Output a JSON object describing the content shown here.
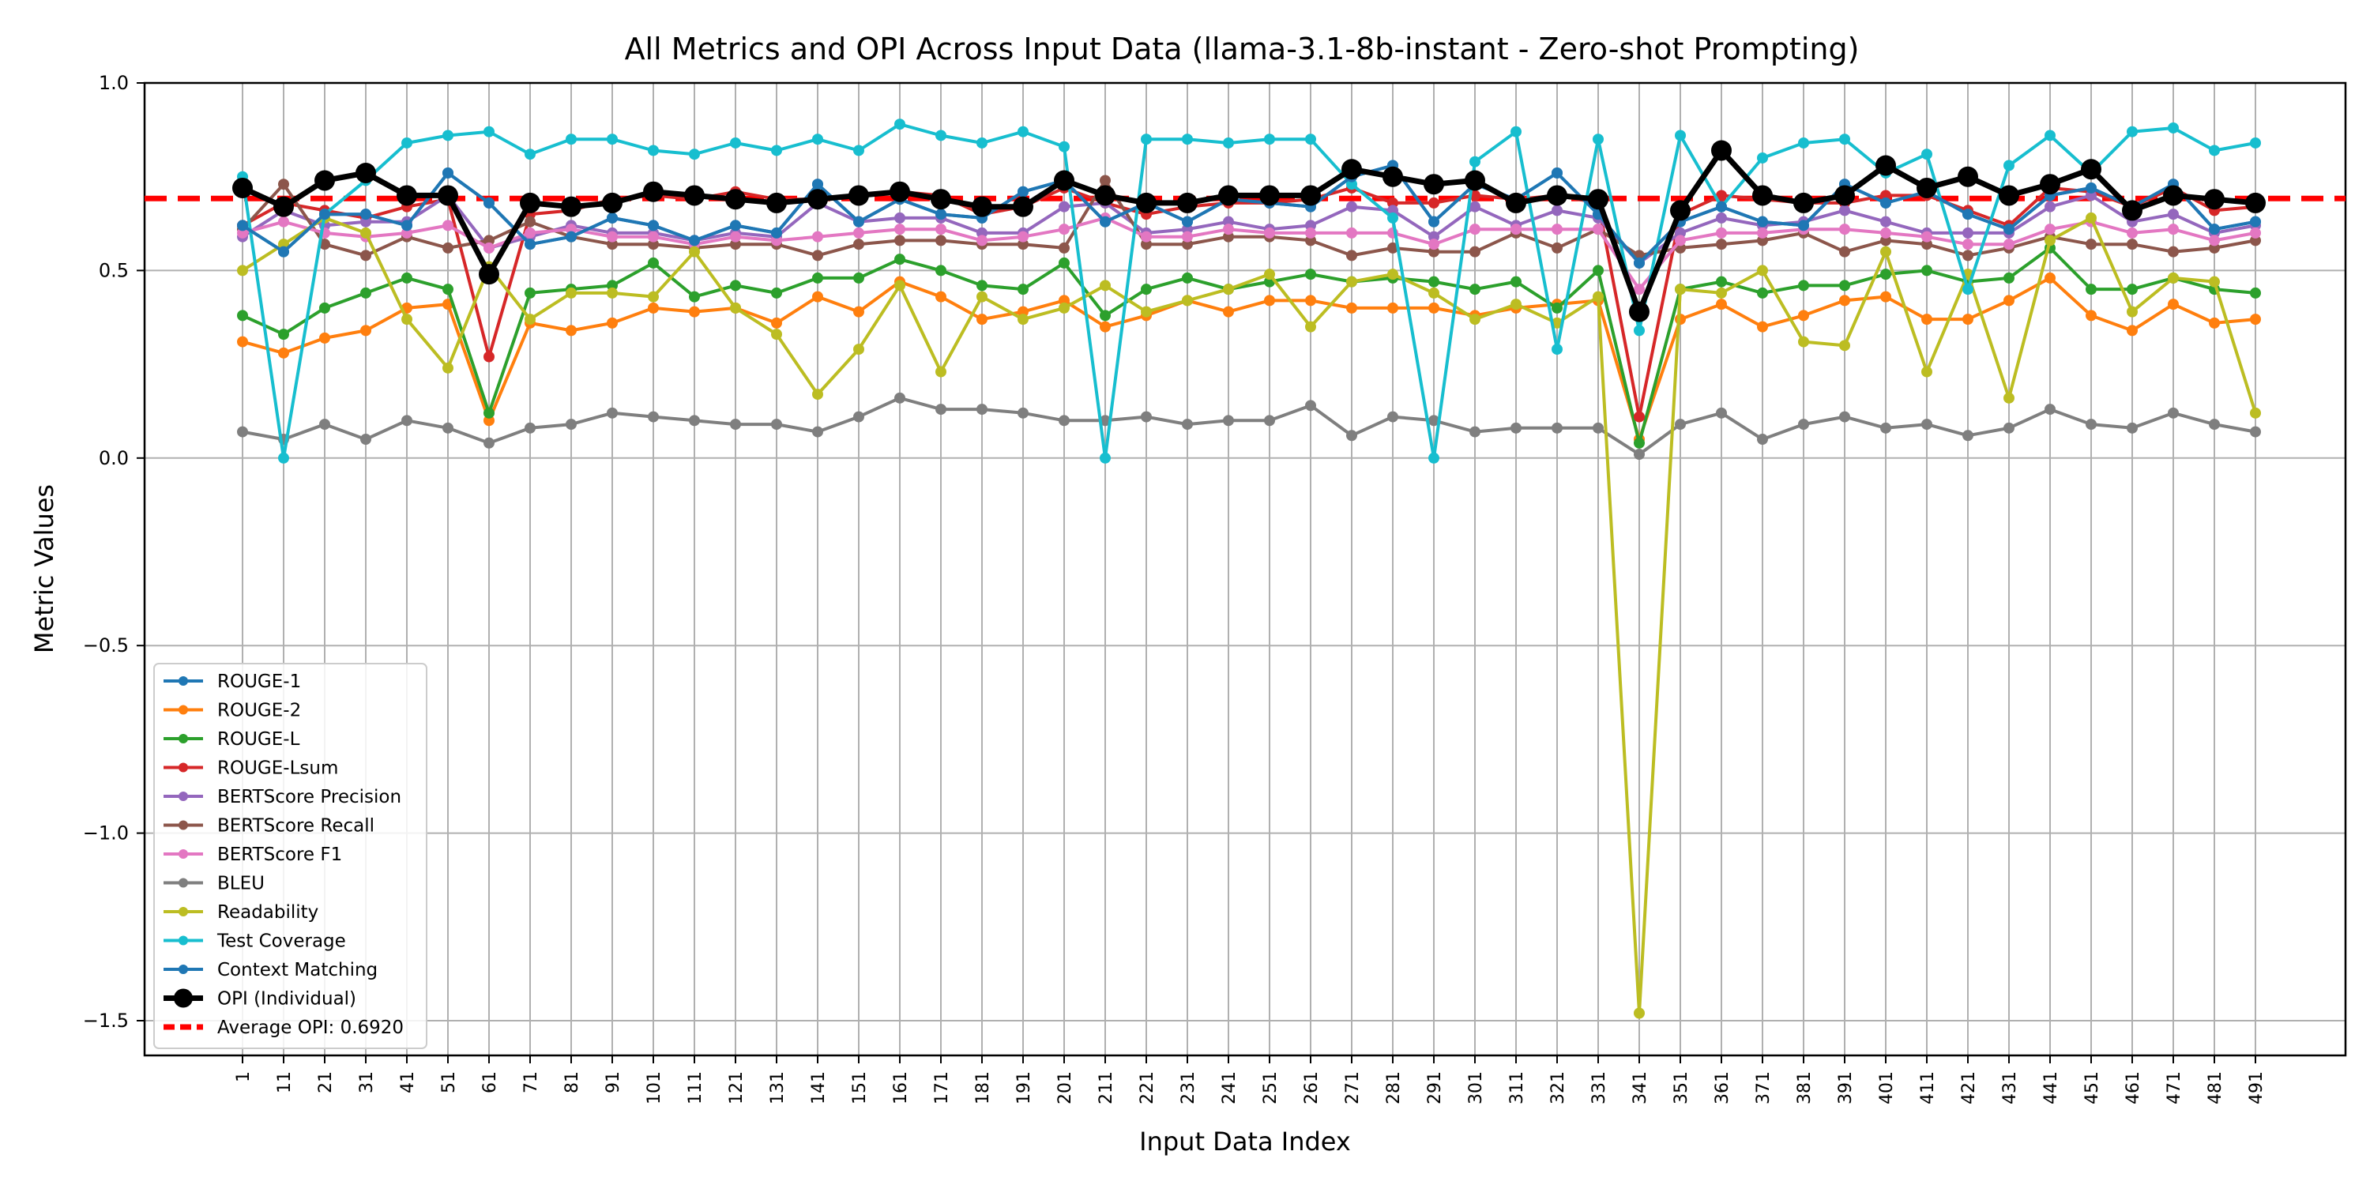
{
  "chart_data": {
    "type": "line",
    "title": "All Metrics and OPI Across Input Data (llama-3.1-8b-instant - Zero-shot Prompting)",
    "xlabel": "Input Data Index",
    "ylabel": "Metric Values",
    "ylim": [
      -1.6,
      1.0
    ],
    "yticks": [
      1.0,
      0.5,
      0.0,
      -0.5,
      -1.0,
      -1.5
    ],
    "ytick_labels": [
      "1.0",
      "0.5",
      "0.0",
      "−0.5",
      "−1.0",
      "−1.5"
    ],
    "grid": true,
    "legend_position": "lower-left",
    "x": [
      "1",
      "11",
      "21",
      "31",
      "41",
      "51",
      "61",
      "71",
      "81",
      "91",
      "101",
      "111",
      "121",
      "131",
      "141",
      "151",
      "161",
      "171",
      "181",
      "191",
      "201",
      "211",
      "221",
      "231",
      "241",
      "251",
      "261",
      "271",
      "281",
      "291",
      "301",
      "311",
      "321",
      "331",
      "341",
      "351",
      "361",
      "371",
      "381",
      "391",
      "401",
      "411",
      "421",
      "431",
      "441",
      "451",
      "461",
      "471",
      "481",
      "491"
    ],
    "series": [
      {
        "name": "ROUGE-1",
        "color": "#1f77b4",
        "values": [
          0.62,
          0.55,
          0.65,
          0.65,
          0.62,
          0.76,
          0.68,
          0.57,
          0.59,
          0.64,
          0.62,
          0.58,
          0.62,
          0.6,
          0.73,
          0.63,
          0.69,
          0.65,
          0.64,
          0.71,
          0.74,
          0.63,
          0.68,
          0.63,
          0.69,
          0.68,
          0.67,
          0.75,
          0.78,
          0.63,
          0.73,
          0.69,
          0.76,
          0.65,
          0.52,
          0.63,
          0.67,
          0.63,
          0.62,
          0.73,
          0.68,
          0.71,
          0.65,
          0.61,
          0.7,
          0.72,
          0.67,
          0.73,
          0.61,
          0.63
        ]
      },
      {
        "name": "ROUGE-2",
        "color": "#ff7f0e",
        "values": [
          0.31,
          0.28,
          0.32,
          0.34,
          0.4,
          0.41,
          0.1,
          0.36,
          0.34,
          0.36,
          0.4,
          0.39,
          0.4,
          0.36,
          0.43,
          0.39,
          0.47,
          0.43,
          0.37,
          0.39,
          0.42,
          0.35,
          0.38,
          0.42,
          0.39,
          0.42,
          0.42,
          0.4,
          0.4,
          0.4,
          0.38,
          0.4,
          0.41,
          0.42,
          0.05,
          0.37,
          0.41,
          0.35,
          0.38,
          0.42,
          0.43,
          0.37,
          0.37,
          0.42,
          0.48,
          0.38,
          0.34,
          0.41,
          0.36,
          0.37
        ]
      },
      {
        "name": "ROUGE-L",
        "color": "#2ca02c",
        "values": [
          0.38,
          0.33,
          0.4,
          0.44,
          0.48,
          0.45,
          0.12,
          0.44,
          0.45,
          0.46,
          0.52,
          0.43,
          0.46,
          0.44,
          0.48,
          0.48,
          0.53,
          0.5,
          0.46,
          0.45,
          0.52,
          0.38,
          0.45,
          0.48,
          0.45,
          0.47,
          0.49,
          0.47,
          0.48,
          0.47,
          0.45,
          0.47,
          0.4,
          0.5,
          0.04,
          0.45,
          0.47,
          0.44,
          0.46,
          0.46,
          0.49,
          0.5,
          0.47,
          0.48,
          0.56,
          0.45,
          0.45,
          0.48,
          0.45,
          0.44
        ]
      },
      {
        "name": "ROUGE-Lsum",
        "color": "#d62728",
        "values": [
          0.62,
          0.68,
          0.66,
          0.64,
          0.67,
          0.69,
          0.27,
          0.65,
          0.66,
          0.69,
          0.7,
          0.69,
          0.71,
          0.69,
          0.69,
          0.7,
          0.71,
          0.7,
          0.65,
          0.67,
          0.72,
          0.68,
          0.65,
          0.67,
          0.68,
          0.68,
          0.69,
          0.72,
          0.68,
          0.68,
          0.7,
          0.69,
          0.7,
          0.68,
          0.11,
          0.65,
          0.7,
          0.69,
          0.68,
          0.68,
          0.7,
          0.7,
          0.66,
          0.62,
          0.72,
          0.71,
          0.67,
          0.72,
          0.66,
          0.67
        ]
      },
      {
        "name": "BERTScore Precision",
        "color": "#9467bd",
        "values": [
          0.59,
          0.66,
          0.62,
          0.63,
          0.63,
          0.7,
          0.56,
          0.59,
          0.62,
          0.6,
          0.6,
          0.58,
          0.6,
          0.59,
          0.68,
          0.63,
          0.64,
          0.64,
          0.6,
          0.6,
          0.67,
          0.68,
          0.6,
          0.61,
          0.63,
          0.61,
          0.62,
          0.67,
          0.66,
          0.59,
          0.67,
          0.62,
          0.66,
          0.64,
          0.52,
          0.6,
          0.64,
          0.62,
          0.63,
          0.66,
          0.63,
          0.6,
          0.6,
          0.6,
          0.67,
          0.7,
          0.63,
          0.65,
          0.6,
          0.62
        ]
      },
      {
        "name": "BERTScore Recall",
        "color": "#8c564b",
        "values": [
          0.61,
          0.73,
          0.57,
          0.54,
          0.59,
          0.56,
          0.58,
          0.63,
          0.59,
          0.57,
          0.57,
          0.56,
          0.57,
          0.57,
          0.54,
          0.57,
          0.58,
          0.58,
          0.57,
          0.57,
          0.56,
          0.74,
          0.57,
          0.57,
          0.59,
          0.59,
          0.58,
          0.54,
          0.56,
          0.55,
          0.55,
          0.6,
          0.56,
          0.61,
          0.54,
          0.56,
          0.57,
          0.58,
          0.6,
          0.55,
          0.58,
          0.57,
          0.54,
          0.56,
          0.59,
          0.57,
          0.57,
          0.55,
          0.56,
          0.58
        ]
      },
      {
        "name": "BERTScore F1",
        "color": "#e377c2",
        "values": [
          0.6,
          0.63,
          0.6,
          0.59,
          0.6,
          0.62,
          0.56,
          0.6,
          0.61,
          0.59,
          0.59,
          0.57,
          0.59,
          0.58,
          0.59,
          0.6,
          0.61,
          0.61,
          0.58,
          0.59,
          0.61,
          0.64,
          0.59,
          0.59,
          0.61,
          0.6,
          0.6,
          0.6,
          0.6,
          0.57,
          0.61,
          0.61,
          0.61,
          0.61,
          0.45,
          0.58,
          0.6,
          0.6,
          0.61,
          0.61,
          0.6,
          0.59,
          0.57,
          0.57,
          0.61,
          0.63,
          0.6,
          0.61,
          0.58,
          0.6
        ]
      },
      {
        "name": "BLEU",
        "color": "#7f7f7f",
        "values": [
          0.07,
          0.05,
          0.09,
          0.05,
          0.1,
          0.08,
          0.04,
          0.08,
          0.09,
          0.12,
          0.11,
          0.1,
          0.09,
          0.09,
          0.07,
          0.11,
          0.16,
          0.13,
          0.13,
          0.12,
          0.1,
          0.1,
          0.11,
          0.09,
          0.1,
          0.1,
          0.14,
          0.06,
          0.11,
          0.1,
          0.07,
          0.08,
          0.08,
          0.08,
          0.01,
          0.09,
          0.12,
          0.05,
          0.09,
          0.11,
          0.08,
          0.09,
          0.06,
          0.08,
          0.13,
          0.09,
          0.08,
          0.12,
          0.09,
          0.07
        ]
      },
      {
        "name": "Readability",
        "color": "#bcbd22",
        "values": [
          0.5,
          0.57,
          0.64,
          0.6,
          0.37,
          0.24,
          0.51,
          0.37,
          0.44,
          0.44,
          0.43,
          0.55,
          0.4,
          0.33,
          0.17,
          0.29,
          0.46,
          0.23,
          0.43,
          0.37,
          0.4,
          0.46,
          0.39,
          0.42,
          0.45,
          0.49,
          0.35,
          0.47,
          0.49,
          0.44,
          0.37,
          0.41,
          0.36,
          0.43,
          -1.48,
          0.45,
          0.44,
          0.5,
          0.31,
          0.3,
          0.55,
          0.23,
          0.49,
          0.16,
          0.58,
          0.64,
          0.39,
          0.48,
          0.47,
          0.12
        ]
      },
      {
        "name": "Test Coverage",
        "color": "#17becf",
        "values": [
          0.75,
          0.0,
          0.65,
          0.74,
          0.84,
          0.86,
          0.87,
          0.81,
          0.85,
          0.85,
          0.82,
          0.81,
          0.84,
          0.82,
          0.85,
          0.82,
          0.89,
          0.86,
          0.84,
          0.87,
          0.83,
          0.0,
          0.85,
          0.85,
          0.84,
          0.85,
          0.85,
          0.73,
          0.64,
          0.0,
          0.79,
          0.87,
          0.29,
          0.85,
          0.34,
          0.86,
          0.67,
          0.8,
          0.84,
          0.85,
          0.76,
          0.81,
          0.45,
          0.78,
          0.86,
          0.76,
          0.87,
          0.88,
          0.82,
          0.84
        ]
      },
      {
        "name": "Context Matching",
        "color": "#1f77b4",
        "values": [
          0.62,
          0.55,
          0.65,
          0.65,
          0.62,
          0.76,
          0.68,
          0.57,
          0.59,
          0.64,
          0.62,
          0.58,
          0.62,
          0.6,
          0.73,
          0.63,
          0.69,
          0.65,
          0.64,
          0.71,
          0.74,
          0.63,
          0.68,
          0.63,
          0.69,
          0.68,
          0.67,
          0.75,
          0.78,
          0.63,
          0.73,
          0.69,
          0.76,
          0.65,
          0.52,
          0.63,
          0.67,
          0.63,
          0.62,
          0.73,
          0.68,
          0.71,
          0.65,
          0.61,
          0.7,
          0.72,
          0.67,
          0.73,
          0.61,
          0.63
        ]
      },
      {
        "name": "OPI (Individual)",
        "color": "#000000",
        "values": [
          0.72,
          0.67,
          0.74,
          0.76,
          0.7,
          0.7,
          0.49,
          0.68,
          0.67,
          0.68,
          0.71,
          0.7,
          0.69,
          0.68,
          0.69,
          0.7,
          0.71,
          0.69,
          0.67,
          0.67,
          0.74,
          0.7,
          0.68,
          0.68,
          0.7,
          0.7,
          0.7,
          0.77,
          0.75,
          0.73,
          0.74,
          0.68,
          0.7,
          0.69,
          0.39,
          0.66,
          0.82,
          0.7,
          0.68,
          0.7,
          0.78,
          0.72,
          0.75,
          0.7,
          0.73,
          0.77,
          0.66,
          0.7,
          0.69,
          0.68
        ]
      }
    ],
    "average_line": {
      "label": "Average OPI: 0.6920",
      "value": 0.692,
      "color": "#ff0000"
    },
    "legend": [
      "ROUGE-1",
      "ROUGE-2",
      "ROUGE-L",
      "ROUGE-Lsum",
      "BERTScore Precision",
      "BERTScore Recall",
      "BERTScore F1",
      "BLEU",
      "Readability",
      "Test Coverage",
      "Context Matching",
      "OPI (Individual)",
      "Average OPI: 0.6920"
    ]
  }
}
